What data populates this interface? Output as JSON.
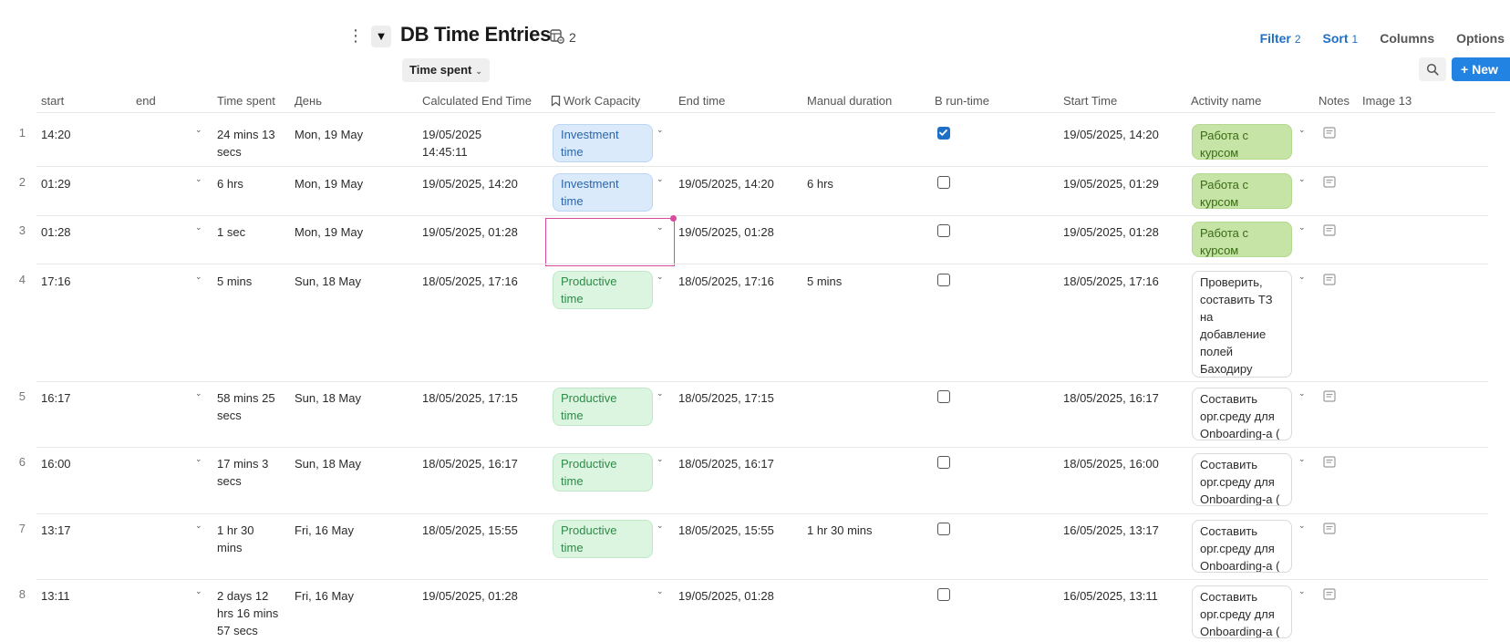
{
  "header": {
    "title": "DB Time Entries",
    "linked_count": "2",
    "group_chip": "Time spent",
    "filter": {
      "label": "Filter",
      "count": "2"
    },
    "sort": {
      "label": "Sort",
      "count": "1"
    },
    "columns_label": "Columns",
    "options_label": "Options",
    "new_label": "New",
    "icons": {
      "menu": "kebab-icon",
      "collapse": "triangle-down-icon",
      "linked_db": "linked-database-icon",
      "search": "search-icon",
      "plus": "plus-icon"
    }
  },
  "columns": [
    {
      "key": "start",
      "label": "start"
    },
    {
      "key": "end",
      "label": "end"
    },
    {
      "key": "time_spent",
      "label": "Time spent"
    },
    {
      "key": "day",
      "label": "День"
    },
    {
      "key": "calc_end",
      "label": "Calculated End Time"
    },
    {
      "key": "work_capacity",
      "label": "Work Capacity"
    },
    {
      "key": "end_time",
      "label": "End time"
    },
    {
      "key": "manual_duration",
      "label": "Manual duration"
    },
    {
      "key": "in_runtime",
      "label": "В run-time"
    },
    {
      "key": "start_time",
      "label": "Start Time"
    },
    {
      "key": "activity",
      "label": "Activity name"
    },
    {
      "key": "notes",
      "label": "Notes"
    },
    {
      "key": "image",
      "label": "Image 13"
    }
  ],
  "rows": [
    {
      "n": "1",
      "start": "14:20",
      "time_spent": [
        "24 mins 13",
        "secs"
      ],
      "day": "Mon, 19 May",
      "calc_end": [
        "19/05/2025",
        "14:45:11"
      ],
      "wc": "Investment time",
      "wc_kind": "inv",
      "end_time": "",
      "manual": "",
      "run": true,
      "start_time": "19/05/2025, 14:20",
      "activity": [
        "Работа с",
        "курсом"
      ],
      "act_kind": "green"
    },
    {
      "n": "2",
      "start": "01:29",
      "time_spent": [
        "6 hrs"
      ],
      "day": "Mon, 19 May",
      "calc_end": [
        "19/05/2025, 14:20"
      ],
      "wc": "Investment time",
      "wc_kind": "inv",
      "end_time": "19/05/2025, 14:20",
      "manual": "6 hrs",
      "run": false,
      "start_time": "19/05/2025, 01:29",
      "activity": [
        "Работа с",
        "курсом"
      ],
      "act_kind": "green"
    },
    {
      "n": "3",
      "start": "01:28",
      "time_spent": [
        "1 sec"
      ],
      "day": "Mon, 19 May",
      "calc_end": [
        "19/05/2025, 01:28"
      ],
      "wc": "",
      "wc_kind": "focus",
      "end_time": "19/05/2025, 01:28",
      "manual": "",
      "run": false,
      "start_time": "19/05/2025, 01:28",
      "activity": [
        "Работа с",
        "курсом"
      ],
      "act_kind": "green"
    },
    {
      "n": "4",
      "start": "17:16",
      "time_spent": [
        "5 mins"
      ],
      "day": "Sun, 18 May",
      "calc_end": [
        "18/05/2025, 17:16"
      ],
      "wc": "Productive time",
      "wc_kind": "prod",
      "end_time": "18/05/2025, 17:16",
      "manual": "5 mins",
      "run": false,
      "start_time": "18/05/2025, 17:16",
      "activity": [
        "Проверить,",
        "составить ТЗ",
        "на",
        "добавление",
        "полей",
        "Баходиру"
      ],
      "act_kind": "white"
    },
    {
      "n": "5",
      "start": "16:17",
      "time_spent": [
        "58 mins 25",
        "secs"
      ],
      "day": "Sun, 18 May",
      "calc_end": [
        "18/05/2025, 17:15"
      ],
      "wc": "Productive time",
      "wc_kind": "prod",
      "end_time": "18/05/2025, 17:15",
      "manual": "",
      "run": false,
      "start_time": "18/05/2025, 16:17",
      "activity": [
        "Составить",
        "орг.среду для",
        "Onboarding-а ("
      ],
      "act_kind": "white"
    },
    {
      "n": "6",
      "start": "16:00",
      "time_spent": [
        "17 mins 3",
        "secs"
      ],
      "day": "Sun, 18 May",
      "calc_end": [
        "18/05/2025, 16:17"
      ],
      "wc": "Productive time",
      "wc_kind": "prod",
      "end_time": "18/05/2025, 16:17",
      "manual": "",
      "run": false,
      "start_time": "18/05/2025, 16:00",
      "activity": [
        "Составить",
        "орг.среду для",
        "Onboarding-а ("
      ],
      "act_kind": "white"
    },
    {
      "n": "7",
      "start": "13:17",
      "time_spent": [
        "1 hr 30",
        "mins"
      ],
      "day": "Fri, 16 May",
      "calc_end": [
        "18/05/2025, 15:55"
      ],
      "wc": "Productive time",
      "wc_kind": "prod",
      "end_time": "18/05/2025, 15:55",
      "manual": "1 hr 30 mins",
      "run": false,
      "start_time": "16/05/2025, 13:17",
      "activity": [
        "Составить",
        "орг.среду для",
        "Onboarding-а ("
      ],
      "act_kind": "white"
    },
    {
      "n": "8",
      "start": "13:11",
      "time_spent": [
        "2 days 12",
        "hrs 16 mins",
        "57 secs"
      ],
      "day": "Fri, 16 May",
      "calc_end": [
        "19/05/2025, 01:28"
      ],
      "wc": "",
      "wc_kind": "none",
      "end_time": "19/05/2025, 01:28",
      "manual": "",
      "run": false,
      "start_time": "16/05/2025, 13:11",
      "activity": [
        "Составить",
        "орг.среду для",
        "Onboarding-а ("
      ],
      "act_kind": "white"
    }
  ]
}
